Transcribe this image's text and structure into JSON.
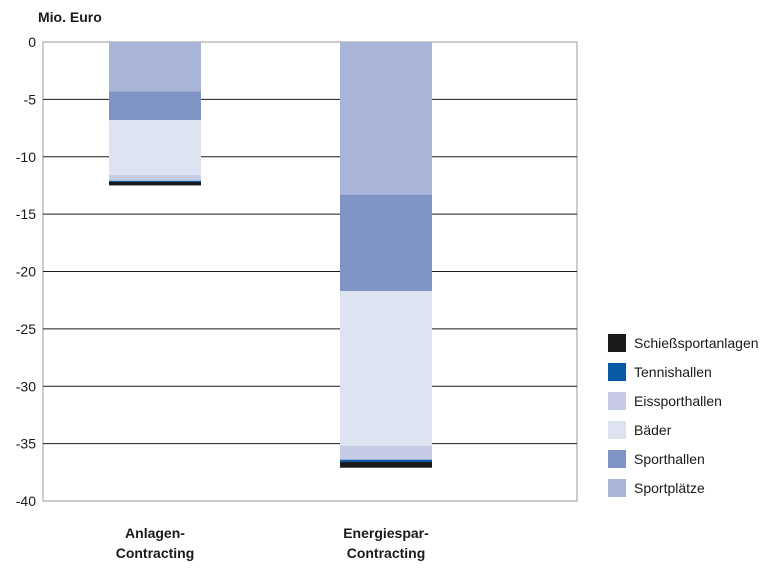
{
  "chart_data": {
    "type": "bar",
    "stacked": true,
    "ylabel": "Mio. Euro",
    "ylim": [
      -40,
      0
    ],
    "yticks": [
      0,
      -5,
      -10,
      -15,
      -20,
      -25,
      -30,
      -35,
      -40
    ],
    "grid": true,
    "legend_position": "right",
    "categories": [
      [
        "Anlagen-",
        "Contracting"
      ],
      [
        "Energiespar-",
        "Contracting"
      ]
    ],
    "series": [
      {
        "name": "Sportplätze",
        "color": "#a9b6d9",
        "values": [
          -4.3,
          -13.3
        ]
      },
      {
        "name": "Sporthallen",
        "color": "#7f93c5",
        "values": [
          -2.5,
          -8.4
        ]
      },
      {
        "name": "Bäder",
        "color": "#dde3f0",
        "values": [
          -4.8,
          -13.5
        ]
      },
      {
        "name": "Eissporthallen",
        "color": "#c5cbe5",
        "values": [
          -0.5,
          -1.2
        ]
      },
      {
        "name": "Tennishallen",
        "color": "#0b5aa8",
        "values": [
          -0.1,
          -0.2
        ]
      },
      {
        "name": "Schießsportanlagen",
        "color": "#1a1a1a",
        "values": [
          -0.3,
          -0.5
        ]
      }
    ],
    "legend_order": [
      "Schießsportanlagen",
      "Tennishallen",
      "Eissporthallen",
      "Bäder",
      "Sporthallen",
      "Sportplätze"
    ]
  }
}
